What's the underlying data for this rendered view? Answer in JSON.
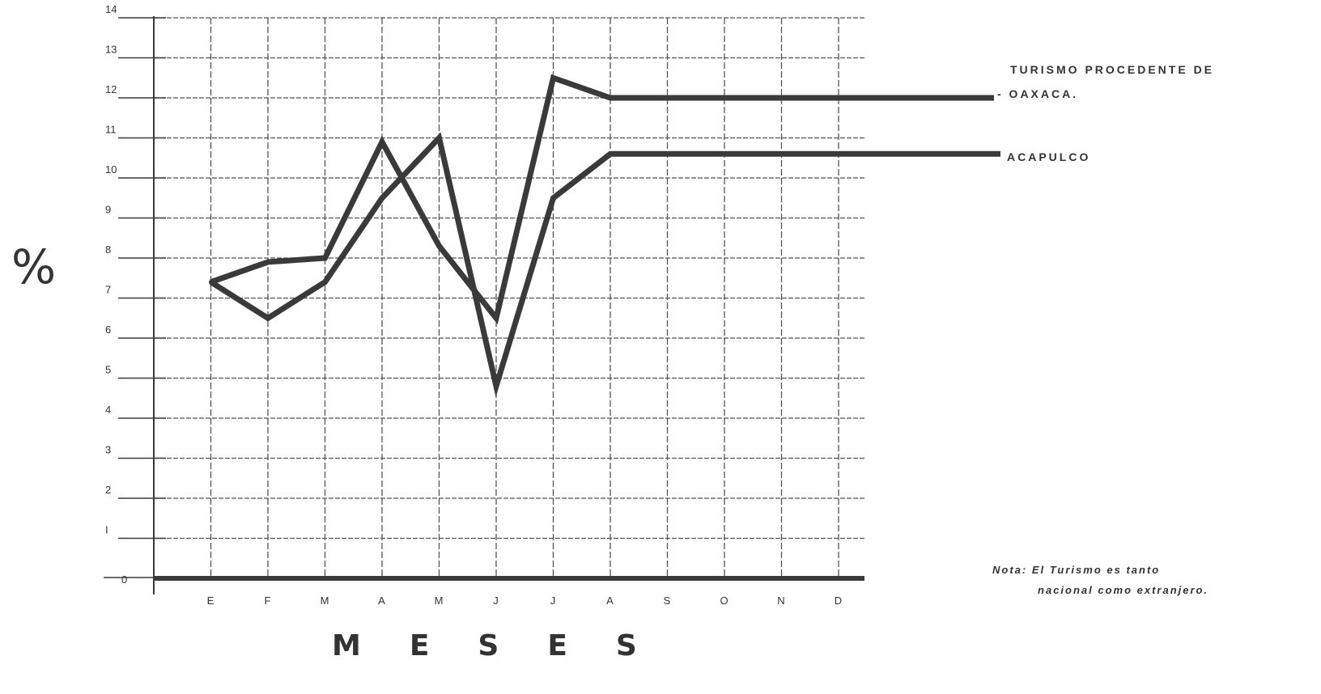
{
  "chart_data": {
    "type": "line",
    "categories": [
      "E",
      "F",
      "M",
      "A",
      "M",
      "J",
      "J",
      "A",
      "S",
      "O",
      "N",
      "D"
    ],
    "series": [
      {
        "name": "TURISMO PROCEDENTE DE - OAXACA.",
        "values": [
          7.4,
          7.9,
          8.0,
          10.9,
          8.3,
          6.5,
          12.5,
          12.0,
          12.0,
          12.0,
          12.0,
          12.0
        ]
      },
      {
        "name": "ACAPULCO",
        "values": [
          7.4,
          6.5,
          7.4,
          9.5,
          11.0,
          4.8,
          9.5,
          10.6,
          10.6,
          10.6,
          10.6,
          10.6
        ]
      }
    ],
    "yticks": [
      "0",
      "I",
      "2",
      "3",
      "4",
      "5",
      "6",
      "7",
      "8",
      "9",
      "10",
      "11",
      "12",
      "13",
      "14"
    ],
    "ylim": [
      0,
      14
    ],
    "ylabel": "%",
    "xlabel": "MESES",
    "grid": true,
    "legend_placement": "right"
  },
  "legend": {
    "oaxaca_line1": "TURISMO PROCEDENTE DE",
    "oaxaca_line2": "- OAXACA.",
    "acapulco": "ACAPULCO"
  },
  "note": {
    "line1": "Nota: El Turismo es tanto",
    "line2": "nacional como extranjero."
  },
  "colors": {
    "line": "#3a3a3a",
    "grid": "#555555",
    "background": "#ffffff"
  }
}
